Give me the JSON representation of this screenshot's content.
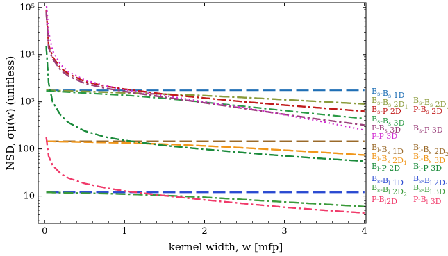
{
  "chart_data": {
    "type": "line",
    "xlabel": "kernel width, w [mfp]",
    "ylabel": "NSD, σμ(w) (unitless)",
    "xlim": [
      -0.08,
      4.02
    ],
    "ylim_log10": [
      0.42,
      5.1
    ],
    "yscale": "log",
    "x_ticks": [
      0,
      1,
      2,
      3,
      4
    ],
    "y_ticks": [
      {
        "value": 10,
        "label": "10"
      },
      {
        "value": 100,
        "label": "100"
      },
      {
        "value": 1000,
        "label": "10³"
      },
      {
        "value": 10000,
        "label": "10⁴"
      },
      {
        "value": 100000,
        "label": "10⁵"
      }
    ],
    "x": [
      0.02,
      0.05,
      0.1,
      0.2,
      0.3,
      0.5,
      0.75,
      1.0,
      1.5,
      2.0,
      2.5,
      3.0,
      3.5,
      4.0
    ],
    "series": [
      {
        "name": "Bs-Bs 1D",
        "color": "#1f6fb5",
        "dash": "18,6",
        "values": [
          1750,
          1750,
          1750,
          1750,
          1750,
          1750,
          1750,
          1750,
          1750,
          1750,
          1750,
          1750,
          1750,
          1750
        ]
      },
      {
        "name": "Bs-Bs 2D1",
        "color": "#8a9a3a",
        "dash": "14,4,3,4",
        "values": [
          1750,
          1740,
          1730,
          1710,
          1690,
          1650,
          1600,
          1550,
          1450,
          1350,
          1230,
          1110,
          1000,
          900
        ]
      },
      {
        "name": "Bs-Bs 2D2",
        "color": "#8a9a3a",
        "dash": "14,4,3,4",
        "values": [
          1750,
          1740,
          1730,
          1710,
          1690,
          1650,
          1600,
          1550,
          1450,
          1350,
          1230,
          1110,
          1000,
          900
        ]
      },
      {
        "name": "Bs-P 2D",
        "color": "#c01a1a",
        "dash": "12,4,3,4",
        "values": [
          90000,
          16000,
          9000,
          5200,
          3900,
          2700,
          2150,
          1850,
          1450,
          1200,
          1000,
          850,
          730,
          630
        ]
      },
      {
        "name": "P-Bs 2D",
        "color": "#c01a1a",
        "dash": "12,4,3,4",
        "values": [
          90000,
          16000,
          9000,
          5200,
          3900,
          2700,
          2150,
          1850,
          1450,
          1200,
          1000,
          850,
          730,
          630
        ]
      },
      {
        "name": "Bs-Bs 3D",
        "color": "#2a9a45",
        "dash": "12,4,3,4",
        "values": [
          1700,
          1690,
          1670,
          1640,
          1600,
          1530,
          1450,
          1380,
          1180,
          980,
          800,
          650,
          530,
          440
        ]
      },
      {
        "name": "P-Bs 3D",
        "color": "#9a3f7a",
        "dash": "12,4,3,4",
        "values": [
          80000,
          14000,
          8200,
          4700,
          3500,
          2450,
          1950,
          1650,
          1250,
          950,
          720,
          540,
          410,
          320
        ]
      },
      {
        "name": "Bs-P 3D",
        "color": "#9a3f7a",
        "dash": "12,4,3,4",
        "values": [
          80000,
          14000,
          8200,
          4700,
          3500,
          2450,
          1950,
          1650,
          1250,
          950,
          720,
          540,
          410,
          320
        ]
      },
      {
        "name": "P-P 3D",
        "color": "#d12ad1",
        "dash": "2,4",
        "values": [
          130000,
          30000,
          12000,
          6200,
          4300,
          2900,
          2200,
          1800,
          1350,
          1000,
          750,
          530,
          370,
          250
        ]
      },
      {
        "name": "Bl-Bs 1D",
        "color": "#9a6a2a",
        "dash": "18,6",
        "values": [
          145,
          145,
          145,
          145,
          145,
          145,
          145,
          145,
          145,
          145,
          145,
          145,
          145,
          145
        ]
      },
      {
        "name": "Bl-Bs 2D2",
        "color": "#9a6a2a",
        "dash": "18,6",
        "values": [
          145,
          145,
          145,
          145,
          145,
          145,
          145,
          145,
          145,
          145,
          145,
          145,
          145,
          145
        ]
      },
      {
        "name": "Bl-Bs 2D1",
        "color": "#f0961a",
        "dash": "14,4",
        "values": [
          145,
          145,
          144,
          143,
          142,
          140,
          137,
          134,
          126,
          116,
          105,
          94,
          84,
          74
        ]
      },
      {
        "name": "Bl-Bs 3D",
        "color": "#f0961a",
        "dash": "14,4",
        "values": [
          145,
          145,
          144,
          143,
          142,
          140,
          137,
          134,
          126,
          116,
          105,
          94,
          84,
          74
        ]
      },
      {
        "name": "Bl-P 2D",
        "color": "#1a8a3a",
        "dash": "12,4,3,4",
        "values": [
          15000,
          2500,
          1000,
          520,
          360,
          240,
          180,
          152,
          118,
          98,
          83,
          71,
          62,
          55
        ]
      },
      {
        "name": "Bl-P 3D",
        "color": "#1a8a3a",
        "dash": "12,4,3,4",
        "values": [
          15000,
          2500,
          1000,
          520,
          360,
          240,
          180,
          152,
          118,
          98,
          83,
          71,
          62,
          55
        ]
      },
      {
        "name": "Bs-Bl 1D",
        "color": "#2a4ad1",
        "dash": "18,6",
        "values": [
          12,
          12,
          12,
          12,
          12,
          12,
          12,
          12,
          12,
          12,
          12,
          12,
          12,
          12
        ]
      },
      {
        "name": "Bs-Bl 2D1",
        "color": "#2a4ad1",
        "dash": "18,6",
        "values": [
          12,
          12,
          12,
          12,
          12,
          12,
          12,
          12,
          12,
          12,
          12,
          12,
          12,
          12
        ]
      },
      {
        "name": "Bs-Bl 2D2",
        "color": "#3a9a3a",
        "dash": "14,4,3,4",
        "values": [
          12,
          12,
          11.9,
          11.8,
          11.7,
          11.5,
          11.3,
          11,
          10.3,
          9.4,
          8.4,
          7.5,
          6.7,
          6
        ]
      },
      {
        "name": "Bs-Bl 3D",
        "color": "#3a9a3a",
        "dash": "14,4,3,4",
        "values": [
          12,
          12,
          11.9,
          11.8,
          11.7,
          11.5,
          11.3,
          11,
          10.3,
          9.4,
          8.4,
          7.5,
          6.7,
          6
        ]
      },
      {
        "name": "P-Bl 2D",
        "color": "#f03a6a",
        "dash": "12,4,3,4",
        "values": [
          180,
          70,
          45,
          30,
          24,
          18.5,
          15,
          12.8,
          10.2,
          8.3,
          6.9,
          5.8,
          5.0,
          4.4
        ]
      },
      {
        "name": "P-Bl 3D",
        "color": "#f03a6a",
        "dash": "12,4,3,4",
        "values": [
          180,
          70,
          45,
          30,
          24,
          18.5,
          15,
          12.8,
          10.2,
          8.3,
          6.9,
          5.8,
          5.0,
          4.4
        ]
      }
    ],
    "legend": {
      "placement": "right",
      "rows": [
        [
          {
            "base": "B",
            "sub1": "s",
            "mid": "-B",
            "sub2": "s",
            "tail": " 1D",
            "tsub": "",
            "color": "#1f6fb5"
          }
        ],
        [
          {
            "base": "B",
            "sub1": "s",
            "mid": "-B",
            "sub2": "s",
            "tail": " 2D",
            "tsub": "1",
            "color": "#8a9a3a"
          },
          {
            "base": "B",
            "sub1": "s",
            "mid": "-B",
            "sub2": "s",
            "tail": " 2D",
            "tsub": "2",
            "color": "#8a9a3a"
          }
        ],
        [
          {
            "base": "B",
            "sub1": "s",
            "mid": "-P",
            "sub2": "",
            "tail": " 2D",
            "tsub": "",
            "color": "#c01a1a"
          },
          {
            "base": "P",
            "sub1": "",
            "mid": "-B",
            "sub2": "s",
            "tail": " 2D",
            "tsub": "",
            "color": "#c01a1a"
          }
        ],
        [
          {
            "base": "B",
            "sub1": "s",
            "mid": "-B",
            "sub2": "s",
            "tail": " 3D",
            "tsub": "",
            "color": "#2a9a45"
          }
        ],
        [
          {
            "base": "P",
            "sub1": "",
            "mid": "-B",
            "sub2": "s",
            "tail": " 3D",
            "tsub": "",
            "color": "#9a3f7a"
          },
          {
            "base": "B",
            "sub1": "s",
            "mid": "-P",
            "sub2": "",
            "tail": " 3D",
            "tsub": "",
            "color": "#9a3f7a"
          }
        ],
        [
          {
            "base": "P",
            "sub1": "",
            "mid": "-P",
            "sub2": "",
            "tail": " 3D",
            "tsub": "",
            "color": "#d12ad1"
          }
        ],
        [
          {
            "base": "B",
            "sub1": "l",
            "mid": "-B",
            "sub2": "s",
            "tail": " 1D",
            "tsub": "",
            "color": "#9a6a2a"
          },
          {
            "base": "B",
            "sub1": "l",
            "mid": "-B",
            "sub2": "s",
            "tail": " 2D",
            "tsub": "2",
            "color": "#9a6a2a"
          }
        ],
        [
          {
            "base": "B",
            "sub1": "l",
            "mid": "-B",
            "sub2": "s",
            "tail": " 2D",
            "tsub": "1",
            "color": "#f0961a"
          },
          {
            "base": "B",
            "sub1": "l",
            "mid": "-B",
            "sub2": "s",
            "tail": " 3D",
            "tsub": "",
            "color": "#f0961a"
          }
        ],
        [
          {
            "base": "B",
            "sub1": "l",
            "mid": "-P",
            "sub2": "",
            "tail": " 2D",
            "tsub": "",
            "color": "#1a8a3a"
          },
          {
            "base": "B",
            "sub1": "l",
            "mid": "-P",
            "sub2": "",
            "tail": " 3D",
            "tsub": "",
            "color": "#1a8a3a"
          }
        ],
        [
          {
            "base": "B",
            "sub1": "s",
            "mid": "-B",
            "sub2": "l",
            "tail": " 1D",
            "tsub": "",
            "color": "#2a4ad1"
          },
          {
            "base": "B",
            "sub1": "s",
            "mid": "-B",
            "sub2": "l",
            "tail": " 2D",
            "tsub": "1",
            "color": "#2a4ad1"
          }
        ],
        [
          {
            "base": "B",
            "sub1": "s",
            "mid": "-B",
            "sub2": "l",
            "tail": " 2D",
            "tsub": "2",
            "color": "#3a9a3a"
          },
          {
            "base": "B",
            "sub1": "s",
            "mid": "-B",
            "sub2": "l",
            "tail": " 3D",
            "tsub": "",
            "color": "#3a9a3a"
          }
        ],
        [
          {
            "base": "P",
            "sub1": "",
            "mid": "-B",
            "sub2": "l",
            "tail": "2D",
            "tsub": "",
            "color": "#f03a6a"
          },
          {
            "base": "P",
            "sub1": "",
            "mid": "-B",
            "sub2": "l",
            "tail": " 3D",
            "tsub": "",
            "color": "#f03a6a"
          }
        ]
      ]
    }
  }
}
